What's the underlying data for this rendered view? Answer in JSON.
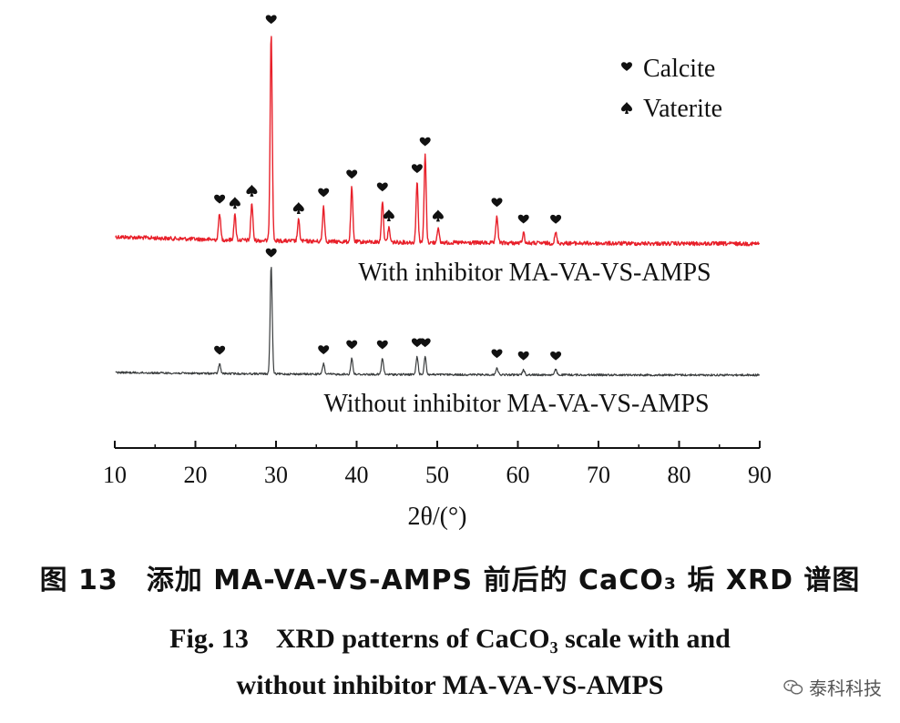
{
  "chart_data": {
    "type": "line",
    "xlabel": "2θ/(°)",
    "x_ticks": [
      10,
      20,
      30,
      40,
      50,
      60,
      70,
      80,
      90
    ],
    "xlim": [
      10,
      90
    ],
    "grid": false,
    "legend_position": "top-right",
    "legend": [
      {
        "symbol": "heart",
        "label": "Calcite"
      },
      {
        "symbol": "spade",
        "label": "Vaterite"
      }
    ],
    "series": [
      {
        "name": "With inhibitor MA-VA-VS-AMPS",
        "color": "#e8202a",
        "peaks": [
          {
            "x": 23.0,
            "height": 0.13,
            "phase": "calcite"
          },
          {
            "x": 24.9,
            "height": 0.12,
            "phase": "vaterite"
          },
          {
            "x": 27.0,
            "height": 0.18,
            "phase": "vaterite"
          },
          {
            "x": 29.4,
            "height": 1.0,
            "phase": "calcite"
          },
          {
            "x": 32.8,
            "height": 0.1,
            "phase": "vaterite"
          },
          {
            "x": 35.9,
            "height": 0.17,
            "phase": "calcite"
          },
          {
            "x": 39.4,
            "height": 0.26,
            "phase": "calcite"
          },
          {
            "x": 43.2,
            "height": 0.2,
            "phase": "calcite"
          },
          {
            "x": 44.0,
            "height": 0.07,
            "phase": "vaterite"
          },
          {
            "x": 47.5,
            "height": 0.29,
            "phase": "calcite"
          },
          {
            "x": 48.5,
            "height": 0.42,
            "phase": "calcite"
          },
          {
            "x": 50.1,
            "height": 0.07,
            "phase": "vaterite"
          },
          {
            "x": 57.4,
            "height": 0.13,
            "phase": "calcite"
          },
          {
            "x": 60.7,
            "height": 0.05,
            "phase": "calcite"
          },
          {
            "x": 64.7,
            "height": 0.05,
            "phase": "calcite"
          }
        ]
      },
      {
        "name": "Without inhibitor MA-VA-VS-AMPS",
        "color": "#3a3d3e",
        "peaks": [
          {
            "x": 23.0,
            "height": 0.09,
            "phase": "calcite"
          },
          {
            "x": 29.4,
            "height": 1.0,
            "phase": "calcite"
          },
          {
            "x": 35.9,
            "height": 0.1,
            "phase": "calcite"
          },
          {
            "x": 39.4,
            "height": 0.15,
            "phase": "calcite"
          },
          {
            "x": 43.2,
            "height": 0.15,
            "phase": "calcite"
          },
          {
            "x": 47.5,
            "height": 0.17,
            "phase": "calcite"
          },
          {
            "x": 48.5,
            "height": 0.17,
            "phase": "calcite"
          },
          {
            "x": 57.4,
            "height": 0.07,
            "phase": "calcite"
          },
          {
            "x": 60.7,
            "height": 0.05,
            "phase": "calcite"
          },
          {
            "x": 64.7,
            "height": 0.05,
            "phase": "calcite"
          }
        ]
      }
    ]
  },
  "caption": {
    "zh": "图 13　添加 MA-VA-VS-AMPS 前后的 CaCO₃ 垢 XRD 谱图",
    "en_line1": "Fig. 13　XRD patterns of CaCO₃ scale with and",
    "en_line2": "without inhibitor MA-VA-VS-AMPS"
  },
  "watermark": {
    "icon": "wechat-icon",
    "text": "泰科科技"
  }
}
